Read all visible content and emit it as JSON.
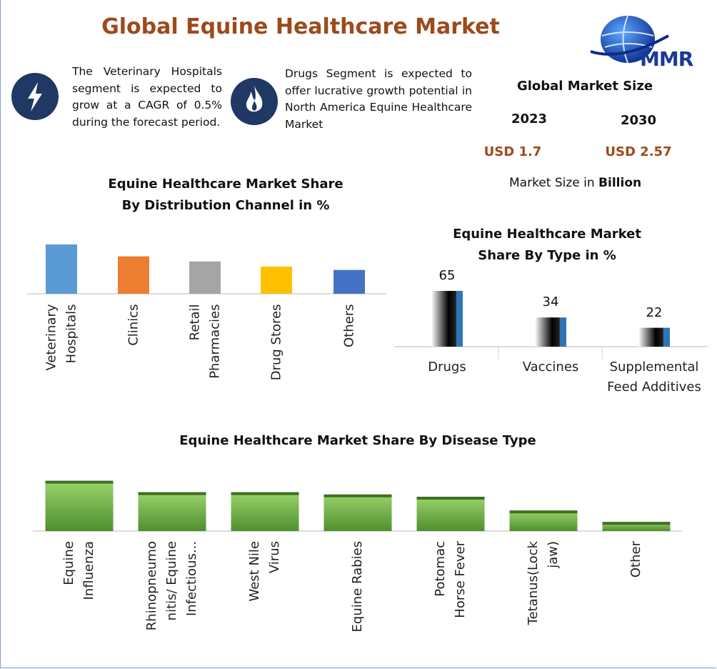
{
  "header": {
    "title": "Global Equine Healthcare Market",
    "logo": "MMR",
    "note_1": "The Veterinary Hospitals segment is expected to grow at a CAGR of 0.5% during the forecast period.",
    "note_2": "Drugs Segment is expected to offer lucrative growth potential in North America Equine Healthcare Market",
    "market_size_title": "Global Market Size",
    "year_1": "2023",
    "year_2": "2030",
    "size_1": "USD 1.7",
    "size_2": "USD 2.57",
    "market_size_note": "Market Size in",
    "market_size_unit": "Billion"
  },
  "chart_data": [
    {
      "type": "bar",
      "title": "Equine Healthcare Market Share By Distribution Channel in %",
      "categories": [
        "Veterinary Hospitals",
        "Clinics",
        "Retail Pharmacies",
        "Drug Stores",
        "Others"
      ],
      "values": [
        29,
        22,
        19,
        16,
        14
      ],
      "colors": [
        "#5b9bd5",
        "#ed7d31",
        "#a5a5a5",
        "#ffc000",
        "#4472c4"
      ]
    },
    {
      "type": "bar",
      "title": "Equine Healthcare Market Share By Type in %",
      "categories": [
        "Drugs",
        "Vaccines",
        "Supplemental Feed Additives"
      ],
      "values": [
        65,
        34,
        22
      ],
      "color": "#2e75b6"
    },
    {
      "type": "bar",
      "title": "Equine Healthcare Market Share By Disease Type",
      "categories": [
        "Equine Influenza",
        "Rhinopneumonitis/ Equine Infectious...",
        "West Nile Virus",
        "Equine Rabies",
        "Potomac Horse Fever",
        "Tetanus(Lock jaw)",
        "Other"
      ],
      "values": [
        22,
        17,
        17,
        16,
        15,
        9,
        4
      ],
      "color": "#70ad47"
    }
  ]
}
